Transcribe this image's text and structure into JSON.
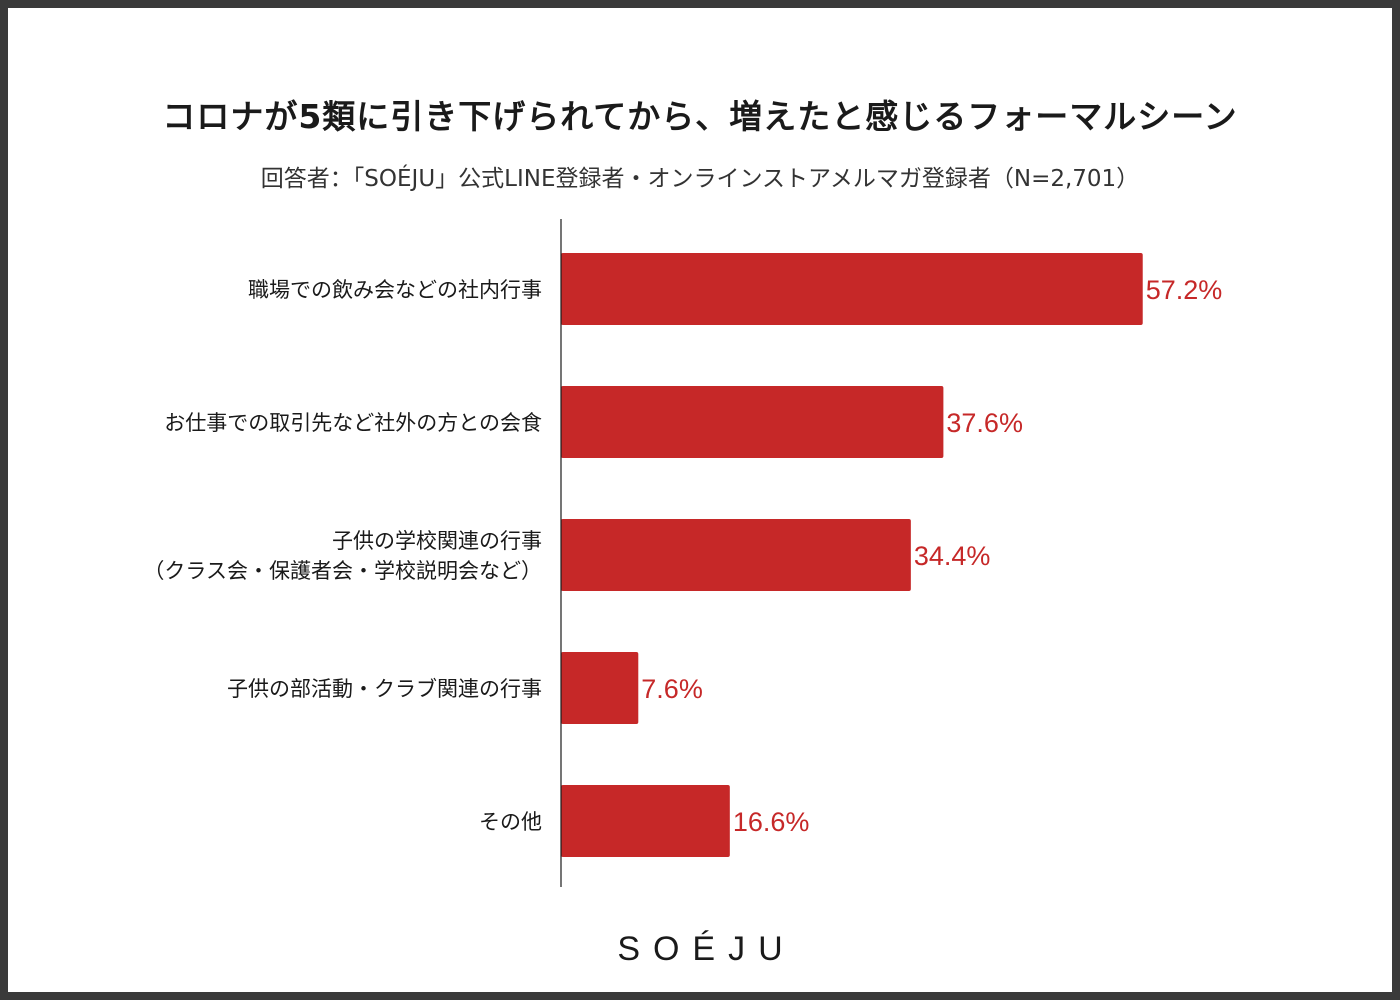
{
  "title": "コロナが5類に引き下げられてから、増えたと感じるフォーマルシーン",
  "subtitle": "回答者：「SOÉJU」公式LINE登録者・オンラインストアメルマガ登録者（N=2,701）",
  "logo": "SOÉJU",
  "colors": {
    "bar": "#c62828",
    "label": "#c62828",
    "axis": "#1a1a1a",
    "category": "#1a1a1a"
  },
  "chart_data": {
    "type": "bar",
    "orientation": "horizontal",
    "categories": [
      [
        "職場での飲み会などの社内行事"
      ],
      [
        "お仕事での取引先など社外の方との会食"
      ],
      [
        "子供の学校関連の行事",
        "（クラス会・保護者会・学校説明会など）"
      ],
      [
        "子供の部活動・クラブ関連の行事"
      ],
      [
        "その他"
      ]
    ],
    "values": [
      57.2,
      37.6,
      34.4,
      7.6,
      16.6
    ],
    "value_labels": [
      "57.2%",
      "37.6%",
      "34.4%",
      "7.6%",
      "16.6%"
    ],
    "unit": "%",
    "xlim": [
      0,
      100
    ],
    "grid": false,
    "legend": "none"
  }
}
